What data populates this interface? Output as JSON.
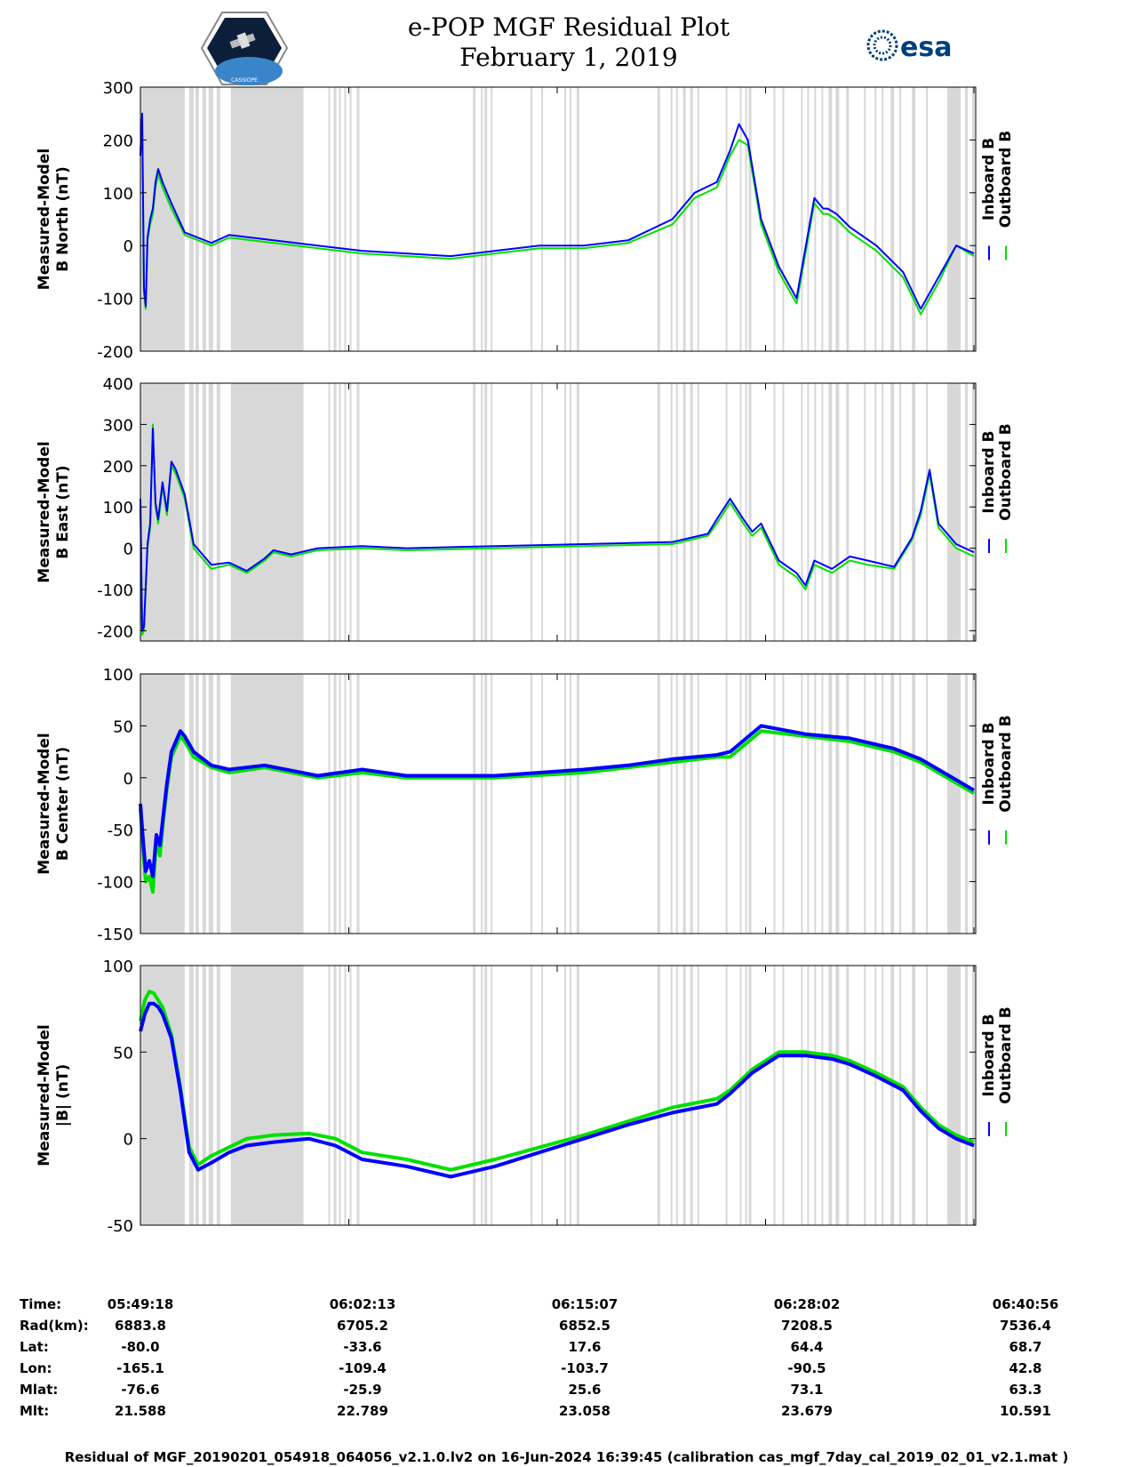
{
  "title": {
    "line1": "e-POP MGF Residual Plot",
    "line2": "February 1, 2019"
  },
  "logos": {
    "left_icon": "cassiope-mission-badge",
    "left_text": "CASSIOPE",
    "right_icon": "esa-logo",
    "right_text": "esa"
  },
  "colors": {
    "inboard": "#0000ff",
    "outboard": "#00e000",
    "gap_shading": "#d8d8d8"
  },
  "legend": {
    "inboard": "Inboard B",
    "outboard": "Outboard B"
  },
  "chart_data": [
    {
      "type": "line",
      "ylabel_line1": "Measured-Model",
      "ylabel_line2": "B North (nT)",
      "ylim": [
        -200,
        300
      ],
      "yticks": [
        -200,
        -100,
        0,
        100,
        200,
        300
      ],
      "ytick_labels": [
        "-200",
        "-100",
        "0",
        "100",
        "200",
        "300"
      ],
      "x": [
        0,
        2,
        4,
        6,
        8,
        11,
        14,
        17,
        20,
        25,
        35,
        50,
        80,
        100,
        150,
        200,
        250,
        300,
        350,
        400,
        450,
        500,
        550,
        600,
        625,
        650,
        665,
        675,
        685,
        700,
        720,
        740,
        760,
        770,
        775,
        785,
        800,
        830,
        860,
        880,
        900,
        920,
        940
      ],
      "series": [
        {
          "name": "Outboard B",
          "values": [
            180,
            240,
            -90,
            -120,
            10,
            40,
            60,
            110,
            135,
            110,
            70,
            20,
            0,
            15,
            5,
            -5,
            -15,
            -20,
            -25,
            -15,
            -5,
            -5,
            5,
            40,
            90,
            110,
            170,
            200,
            190,
            40,
            -50,
            -110,
            80,
            60,
            60,
            50,
            25,
            -10,
            -60,
            -130,
            -70,
            0,
            -20
          ]
        },
        {
          "name": "Inboard B",
          "values": [
            170,
            250,
            -80,
            -115,
            15,
            50,
            70,
            120,
            145,
            120,
            80,
            25,
            5,
            20,
            10,
            0,
            -10,
            -15,
            -20,
            -10,
            0,
            0,
            10,
            50,
            100,
            120,
            180,
            230,
            200,
            50,
            -40,
            -100,
            90,
            70,
            70,
            60,
            35,
            0,
            -50,
            -120,
            -60,
            0,
            -15
          ]
        }
      ]
    },
    {
      "type": "line",
      "ylabel_line1": "Measured-Model",
      "ylabel_line2": "B East (nT)",
      "ylim": [
        -225,
        400
      ],
      "yticks": [
        -200,
        -100,
        0,
        100,
        200,
        300,
        400
      ],
      "ytick_labels": [
        "-200",
        "-100",
        "0",
        "100",
        "200",
        "300",
        "400"
      ],
      "x": [
        0,
        2,
        4,
        6,
        8,
        11,
        14,
        17,
        20,
        25,
        30,
        35,
        40,
        50,
        60,
        80,
        100,
        120,
        140,
        150,
        170,
        190,
        200,
        250,
        300,
        400,
        500,
        600,
        620,
        640,
        650,
        665,
        680,
        690,
        700,
        720,
        740,
        750,
        760,
        780,
        800,
        820,
        850,
        870,
        880,
        890,
        900,
        920,
        940
      ],
      "series": [
        {
          "name": "Outboard B",
          "values": [
            100,
            -210,
            -200,
            -100,
            0,
            50,
            300,
            100,
            60,
            150,
            80,
            200,
            180,
            120,
            0,
            -50,
            -40,
            -60,
            -30,
            -10,
            -20,
            -10,
            -5,
            0,
            -5,
            0,
            5,
            10,
            20,
            30,
            60,
            110,
            60,
            30,
            50,
            -40,
            -70,
            -100,
            -40,
            -60,
            -30,
            -40,
            -50,
            20,
            80,
            180,
            50,
            0,
            -20
          ]
        },
        {
          "name": "Inboard B",
          "values": [
            120,
            -200,
            -190,
            -90,
            10,
            60,
            290,
            110,
            70,
            160,
            90,
            210,
            190,
            130,
            10,
            -40,
            -35,
            -55,
            -25,
            -5,
            -15,
            -5,
            0,
            5,
            0,
            5,
            10,
            15,
            25,
            35,
            70,
            120,
            70,
            40,
            60,
            -30,
            -60,
            -90,
            -30,
            -50,
            -20,
            -30,
            -45,
            25,
            90,
            190,
            60,
            10,
            -10
          ]
        }
      ]
    },
    {
      "type": "line",
      "ylabel_line1": "Measured-Model",
      "ylabel_line2": "B Center (nT)",
      "ylim": [
        -150,
        100
      ],
      "yticks": [
        -150,
        -100,
        -50,
        0,
        50,
        100
      ],
      "ytick_labels": [
        "-150",
        "-100",
        "-50",
        "0",
        "50",
        "100"
      ],
      "x": [
        0,
        3,
        6,
        10,
        14,
        18,
        22,
        26,
        30,
        35,
        40,
        45,
        50,
        60,
        80,
        100,
        140,
        200,
        250,
        300,
        400,
        500,
        550,
        600,
        650,
        665,
        700,
        750,
        800,
        850,
        880,
        900,
        940
      ],
      "series": [
        {
          "name": "Outboard B",
          "values": [
            -30,
            -70,
            -100,
            -95,
            -110,
            -60,
            -75,
            -40,
            -10,
            20,
            30,
            40,
            35,
            20,
            10,
            5,
            10,
            0,
            5,
            0,
            0,
            5,
            10,
            15,
            20,
            20,
            45,
            40,
            35,
            25,
            15,
            5,
            -15
          ]
        },
        {
          "name": "Inboard B",
          "values": [
            -25,
            -60,
            -90,
            -80,
            -95,
            -55,
            -65,
            -35,
            -5,
            25,
            35,
            45,
            40,
            25,
            12,
            8,
            12,
            2,
            8,
            2,
            2,
            8,
            12,
            18,
            22,
            25,
            50,
            42,
            38,
            28,
            18,
            8,
            -12
          ]
        }
      ]
    },
    {
      "type": "line",
      "ylabel_line1": "Measured-Model",
      "ylabel_line2": "|B| (nT)",
      "ylim": [
        -50,
        100
      ],
      "yticks": [
        -50,
        0,
        50,
        100
      ],
      "ytick_labels": [
        "-50",
        "0",
        "50",
        "100"
      ],
      "x": [
        0,
        5,
        10,
        15,
        20,
        25,
        35,
        45,
        55,
        65,
        80,
        100,
        120,
        150,
        190,
        220,
        250,
        300,
        350,
        400,
        450,
        500,
        550,
        600,
        650,
        665,
        690,
        720,
        750,
        780,
        800,
        830,
        860,
        880,
        900,
        920,
        940
      ],
      "series": [
        {
          "name": "Outboard B",
          "values": [
            68,
            80,
            85,
            84,
            80,
            76,
            60,
            30,
            -5,
            -15,
            -10,
            -5,
            0,
            2,
            3,
            0,
            -8,
            -12,
            -18,
            -12,
            -5,
            2,
            10,
            18,
            23,
            28,
            40,
            50,
            50,
            48,
            45,
            38,
            30,
            18,
            8,
            2,
            -2
          ]
        },
        {
          "name": "Inboard B",
          "values": [
            62,
            72,
            78,
            78,
            76,
            72,
            58,
            28,
            -8,
            -18,
            -14,
            -8,
            -4,
            -2,
            0,
            -4,
            -12,
            -16,
            -22,
            -16,
            -8,
            0,
            8,
            15,
            20,
            26,
            38,
            48,
            48,
            46,
            43,
            36,
            28,
            16,
            6,
            0,
            -4
          ]
        }
      ]
    }
  ],
  "x_axis": {
    "range": [
      0,
      942
    ],
    "tick_positions": [
      0,
      235,
      470,
      705,
      940
    ]
  },
  "info_table": {
    "labels": [
      "Time:",
      "Rad(km):",
      "Lat:",
      "Lon:",
      "Mlat:",
      "Mlt:"
    ],
    "columns": [
      [
        "05:49:18",
        "6883.8",
        "-80.0",
        "-165.1",
        "-76.6",
        "21.588"
      ],
      [
        "06:02:13",
        "6705.2",
        "-33.6",
        "-109.4",
        "-25.9",
        "22.789"
      ],
      [
        "06:15:07",
        "6852.5",
        "17.6",
        "-103.7",
        "25.6",
        "23.058"
      ],
      [
        "06:28:02",
        "7208.5",
        "64.4",
        "-90.5",
        "73.1",
        "23.679"
      ],
      [
        "06:40:56",
        "7536.4",
        "68.7",
        "42.8",
        "63.3",
        "10.591"
      ]
    ]
  },
  "footer": "Residual of MGF_20190201_054918_064056_v2.1.0.lv2 on 16-Jun-2024 16:39:45 (calibration cas_mgf_7day_cal_2019_02_01_v2.1.mat )"
}
